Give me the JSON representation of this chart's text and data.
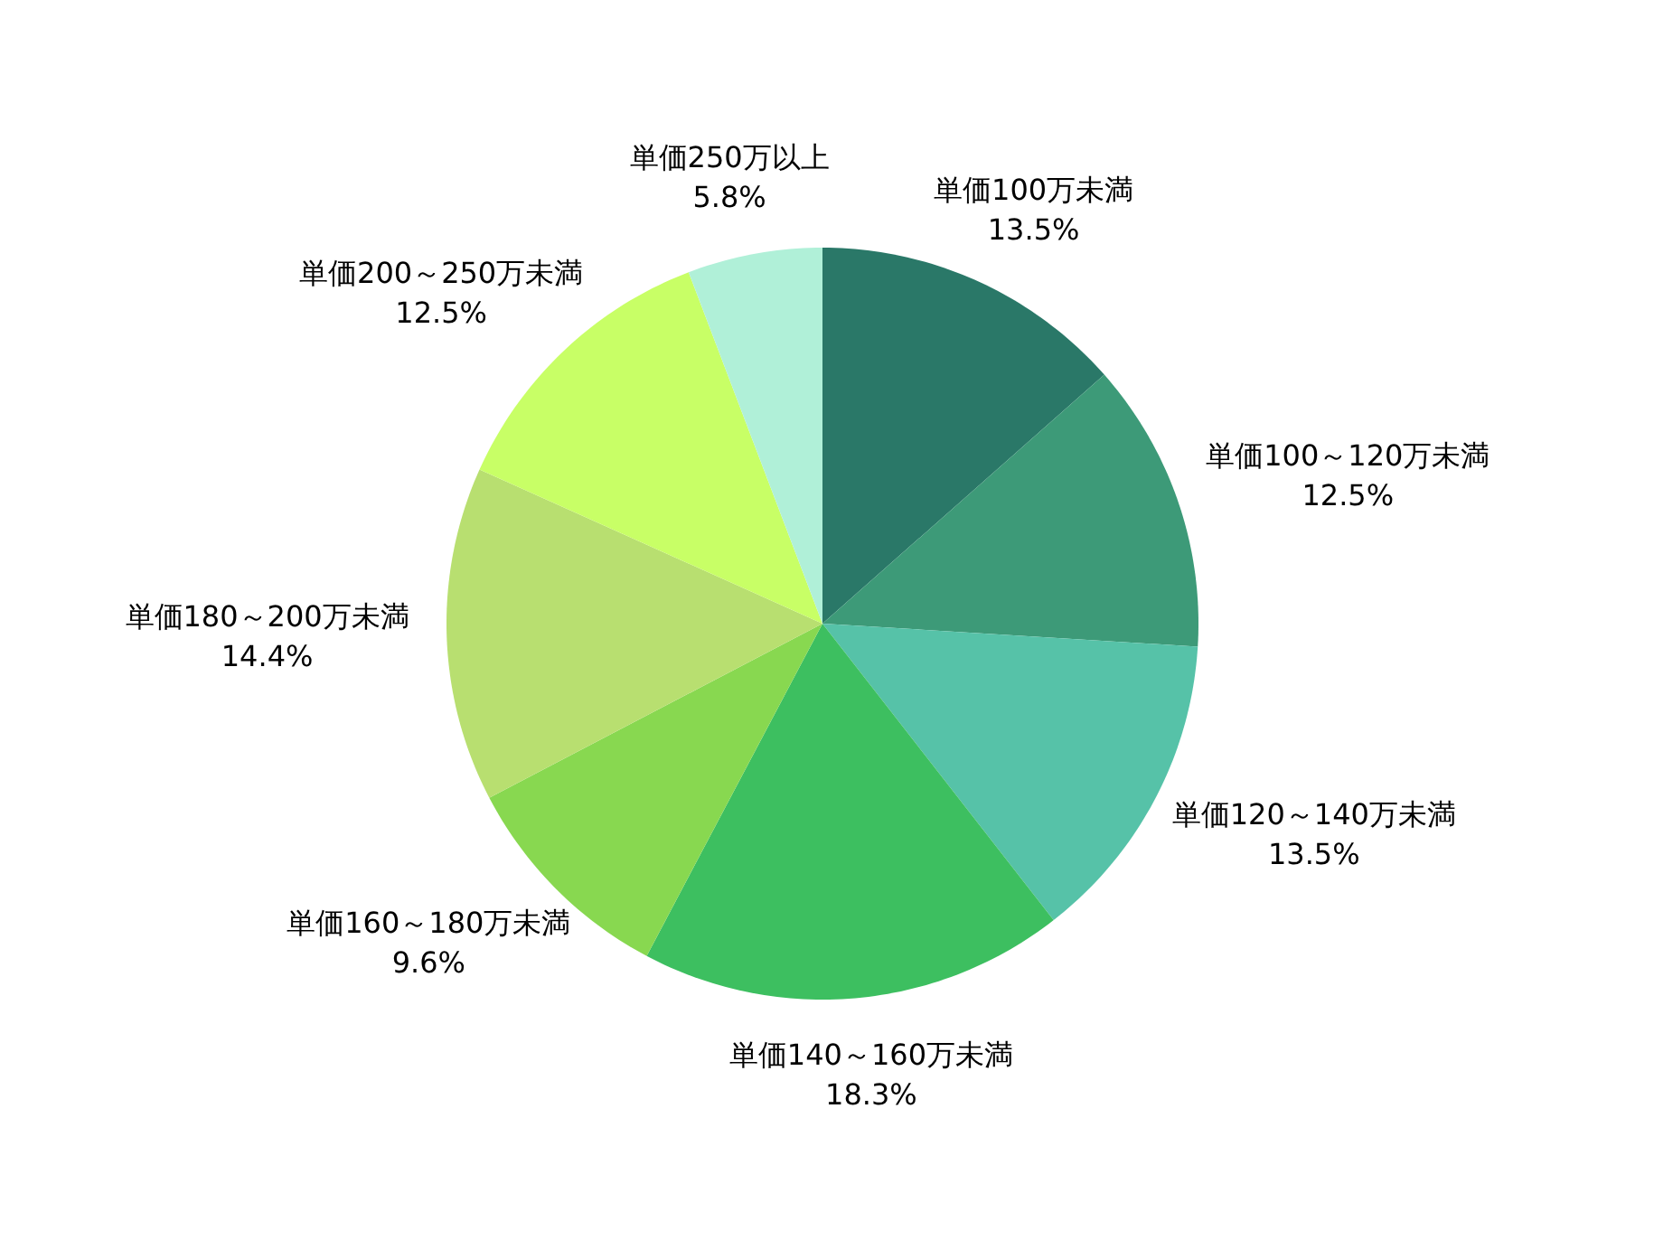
{
  "chart_data": {
    "type": "pie",
    "categories": [
      "単価100万未満",
      "単価100～120万未満",
      "単価120～140万未満",
      "単価140～160万未満",
      "単価160～180万未満",
      "単価180～200万未満",
      "単価200～250万未満",
      "単価250万以上"
    ],
    "values": [
      13.5,
      12.5,
      13.5,
      18.3,
      9.6,
      14.4,
      12.5,
      5.8
    ],
    "value_labels": [
      "13.5%",
      "12.5%",
      "13.5%",
      "18.3%",
      "9.6%",
      "14.4%",
      "12.5%",
      "5.8%"
    ],
    "colors": [
      "#2a7868",
      "#3d9a78",
      "#56c2a8",
      "#3dbf60",
      "#88d850",
      "#b8df70",
      "#c8ff66",
      "#b0f0d8"
    ]
  }
}
